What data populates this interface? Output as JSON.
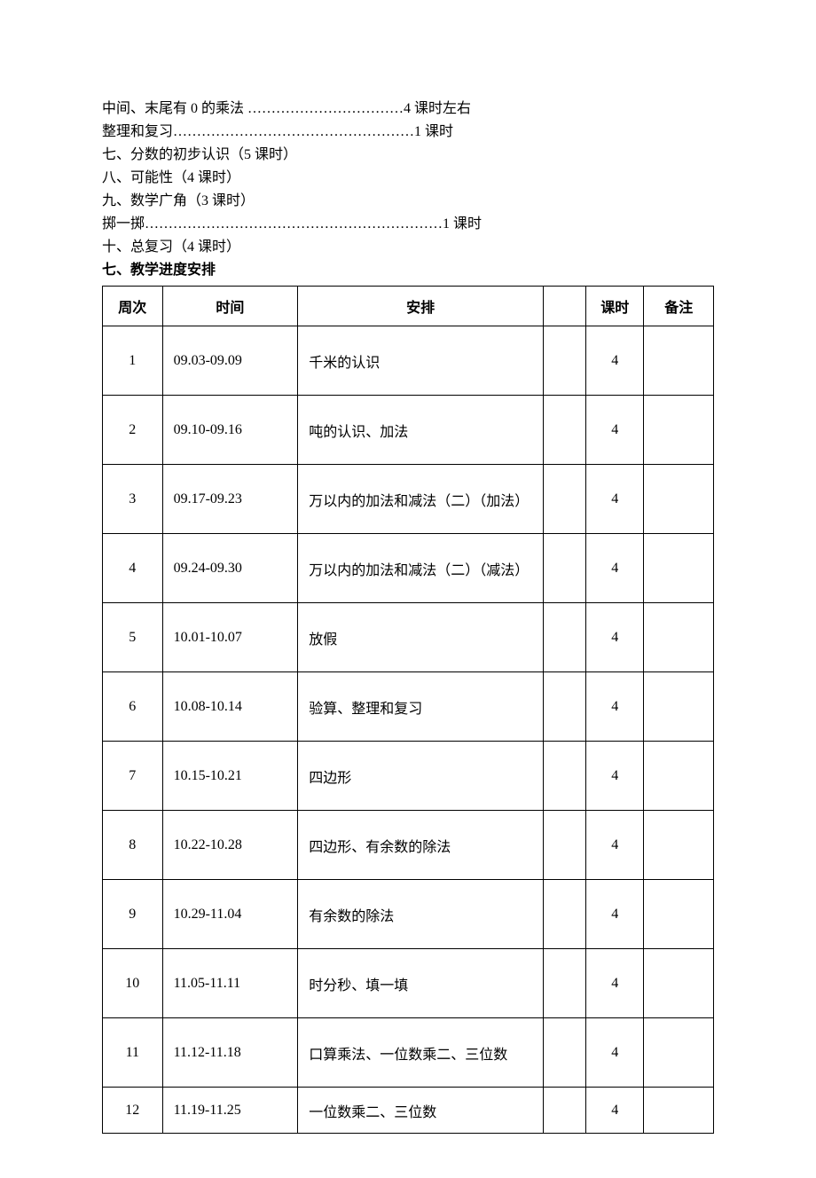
{
  "lines": [
    {
      "text": "中间、末尾有 0 的乘法 ……………………………4 课时左右",
      "bold": false
    },
    {
      "text": "整理和复习……………………………………………1 课时",
      "bold": false
    },
    {
      "text": "七、分数的初步认识（5 课时）",
      "bold": false
    },
    {
      "text": "八、可能性（4 课时）",
      "bold": false
    },
    {
      "text": "九、数学广角（3 课时）",
      "bold": false
    },
    {
      "text": "掷一掷………………………………………………………1 课时",
      "bold": false
    },
    {
      "text": "十、总复习（4 课时）",
      "bold": false
    },
    {
      "text": "七、教学进度安排",
      "bold": true
    }
  ],
  "table": {
    "headers": {
      "week": "周次",
      "time": "时间",
      "arrange": "安排",
      "spacer": "",
      "hours": "课时",
      "note": "备注"
    },
    "rows": [
      {
        "week": "1",
        "time": "09.03-09.09",
        "arrange": "千米的认识",
        "hours": "4",
        "note": ""
      },
      {
        "week": "2",
        "time": "09.10-09.16",
        "arrange": "吨的认识、加法",
        "hours": "4",
        "note": ""
      },
      {
        "week": "3",
        "time": "09.17-09.23",
        "arrange": "万以内的加法和减法（二）（加法）",
        "hours": "4",
        "note": ""
      },
      {
        "week": "4",
        "time": "09.24-09.30",
        "arrange": "万以内的加法和减法（二）（减法）",
        "hours": "4",
        "note": ""
      },
      {
        "week": "5",
        "time": "10.01-10.07",
        "arrange": "放假",
        "hours": "4",
        "note": ""
      },
      {
        "week": "6",
        "time": "10.08-10.14",
        "arrange": "验算、整理和复习",
        "hours": "4",
        "note": ""
      },
      {
        "week": "7",
        "time": "10.15-10.21",
        "arrange": "四边形",
        "hours": "4",
        "note": ""
      },
      {
        "week": "8",
        "time": "10.22-10.28",
        "arrange": "四边形、有余数的除法",
        "hours": "4",
        "note": ""
      },
      {
        "week": "9",
        "time": "10.29-11.04",
        "arrange": "有余数的除法",
        "hours": "4",
        "note": ""
      },
      {
        "week": "10",
        "time": "11.05-11.11",
        "arrange": "时分秒、填一填",
        "hours": "4",
        "note": ""
      },
      {
        "week": "11",
        "time": "11.12-11.18",
        "arrange": "口算乘法、一位数乘二、三位数",
        "hours": "4",
        "note": ""
      },
      {
        "week": "12",
        "time": "11.19-11.25",
        "arrange": "一位数乘二、三位数",
        "hours": "4",
        "note": ""
      }
    ]
  },
  "colors": {
    "text": "#000000",
    "background": "#ffffff",
    "border": "#000000"
  },
  "typography": {
    "body_fontsize": 16,
    "line_height": 26,
    "font_family": "SimSun"
  }
}
